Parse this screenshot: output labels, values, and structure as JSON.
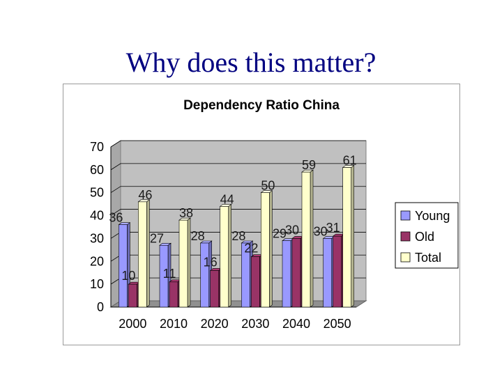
{
  "slide": {
    "title": "Why does this matter?"
  },
  "colors": {
    "young": "#9999ff",
    "old": "#993366",
    "total": "#ffffcc",
    "wall": "#c0c0c0",
    "grid": "#000000"
  },
  "chart_data": {
    "type": "bar",
    "title": "Dependency Ratio China",
    "categories": [
      "2000",
      "2010",
      "2020",
      "2030",
      "2040",
      "2050"
    ],
    "series": [
      {
        "name": "Young",
        "values": [
          36,
          27,
          28,
          28,
          29,
          30
        ]
      },
      {
        "name": "Old",
        "values": [
          10,
          11,
          16,
          22,
          30,
          31
        ]
      },
      {
        "name": "Total",
        "values": [
          46,
          38,
          44,
          50,
          59,
          61
        ]
      }
    ],
    "yticks": [
      "0",
      "10",
      "20",
      "30",
      "40",
      "50",
      "60",
      "70"
    ],
    "ylim": [
      0,
      70
    ],
    "xlabel": "",
    "ylabel": "",
    "legend": "right",
    "grid": true
  }
}
